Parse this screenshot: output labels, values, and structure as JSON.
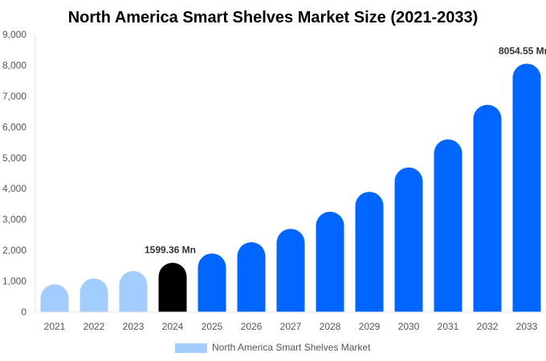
{
  "chart_data": {
    "type": "bar",
    "title": "North America Smart Shelves Market Size (2021-2033)",
    "xlabel": "",
    "ylabel": "",
    "ylim": [
      0,
      9000
    ],
    "yticks": [
      "0",
      "1,000",
      "2,000",
      "3,000",
      "4,000",
      "5,000",
      "6,000",
      "7,000",
      "8,000",
      "9,000"
    ],
    "categories": [
      "2021",
      "2022",
      "2023",
      "2024",
      "2025",
      "2026",
      "2027",
      "2028",
      "2029",
      "2030",
      "2031",
      "2032",
      "2033"
    ],
    "series": [
      {
        "name": "North America Smart Shelves Market",
        "values": [
          900,
          1090,
          1330,
          1599.36,
          1900,
          2265,
          2700,
          3255,
          3900,
          4690,
          5600,
          6720,
          8054.55
        ]
      }
    ],
    "bar_colors": [
      "#a3cdfc",
      "#a3cdfc",
      "#a3cdfc",
      "#000000",
      "#0066ff",
      "#0066ff",
      "#0066ff",
      "#0066ff",
      "#0066ff",
      "#0066ff",
      "#0066ff",
      "#0066ff",
      "#0066ff"
    ],
    "data_labels": {
      "3": "1599.36 Mn",
      "12": "8054.55 Mn"
    },
    "legend": {
      "label": "North America Smart Shelves Market",
      "color": "#a3cdfc",
      "position": "bottom"
    },
    "grid": false
  }
}
